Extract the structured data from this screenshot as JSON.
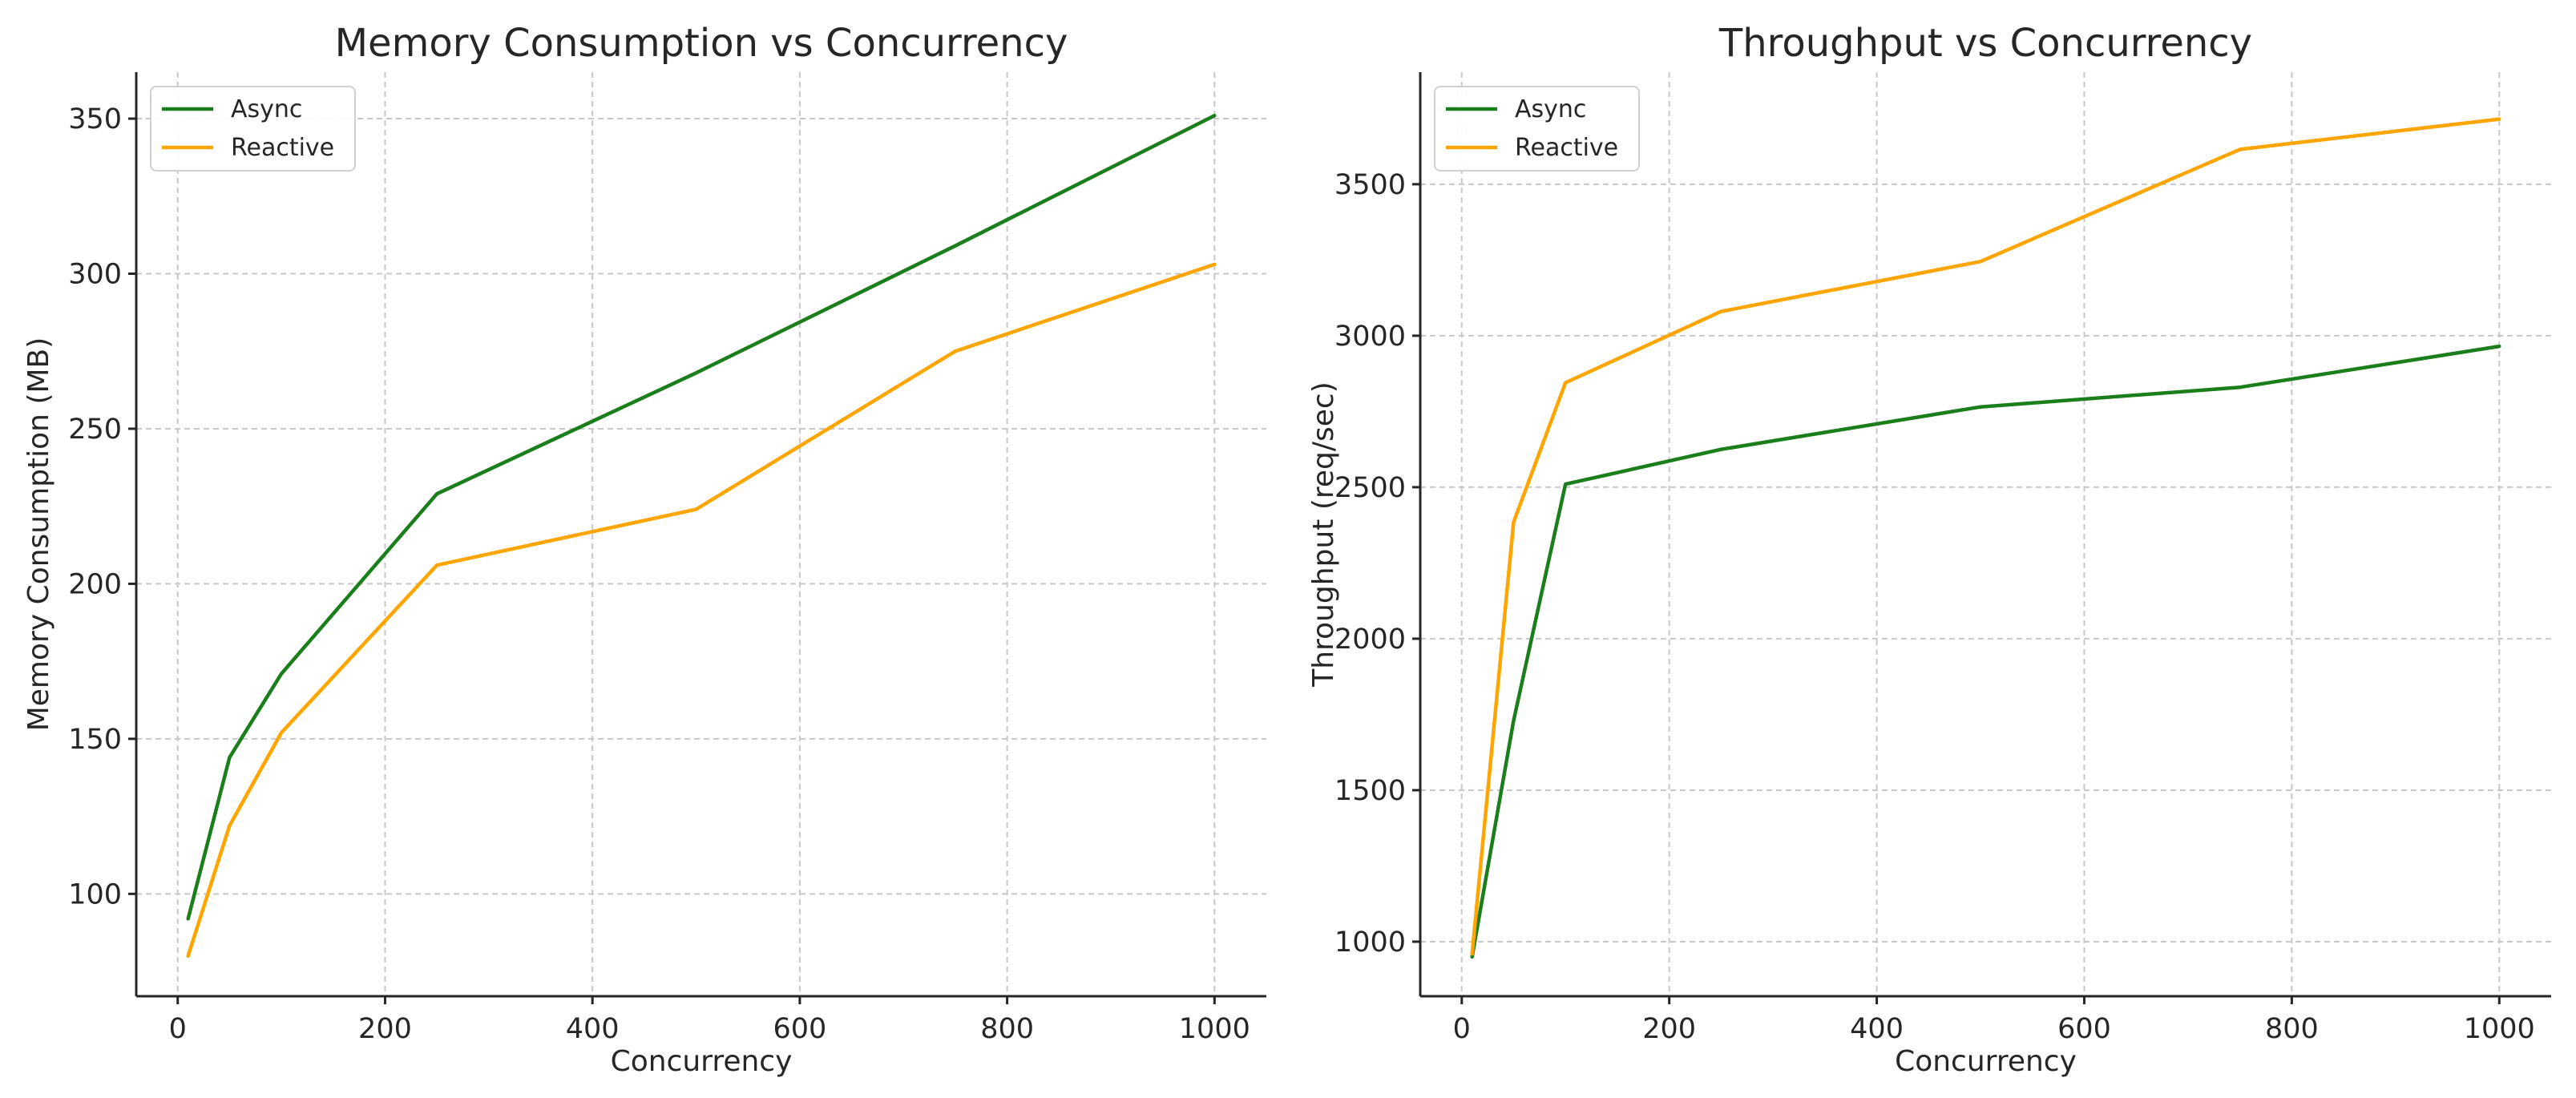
{
  "figure": {
    "background": "#ffffff"
  },
  "chart_data": [
    {
      "type": "line",
      "title": "Memory Consumption vs Concurrency",
      "xlabel": "Concurrency",
      "ylabel": "Memory Consumption (MB)",
      "xlim": [
        -40,
        1050
      ],
      "ylim": [
        67,
        365
      ],
      "xticks": [
        0,
        200,
        400,
        600,
        800,
        1000
      ],
      "yticks": [
        100,
        150,
        200,
        250,
        300,
        350
      ],
      "grid": true,
      "legend": "top-left",
      "x": [
        10,
        50,
        100,
        250,
        500,
        750,
        1000
      ],
      "series": [
        {
          "name": "Async",
          "color": "#1a7f1a",
          "values": [
            92,
            144,
            171,
            229,
            268,
            309,
            351
          ]
        },
        {
          "name": "Reactive",
          "color": "#ffa500",
          "values": [
            80,
            122,
            152,
            206,
            224,
            275,
            303
          ]
        }
      ]
    },
    {
      "type": "line",
      "title": "Throughput vs Concurrency",
      "xlabel": "Concurrency",
      "ylabel": "Throughput (req/sec)",
      "xlim": [
        -40,
        1050
      ],
      "ylim": [
        820,
        3870
      ],
      "xticks": [
        0,
        200,
        400,
        600,
        800,
        1000
      ],
      "yticks": [
        1000,
        1500,
        2000,
        2500,
        3000,
        3500
      ],
      "grid": true,
      "legend": "top-left",
      "x": [
        10,
        50,
        100,
        250,
        500,
        750,
        1000
      ],
      "series": [
        {
          "name": "Async",
          "color": "#1a7f1a",
          "values": [
            950,
            1730,
            2510,
            2625,
            2765,
            2830,
            2965
          ]
        },
        {
          "name": "Reactive",
          "color": "#ffa500",
          "values": [
            960,
            2385,
            2845,
            3080,
            3245,
            3615,
            3715
          ]
        }
      ]
    }
  ]
}
